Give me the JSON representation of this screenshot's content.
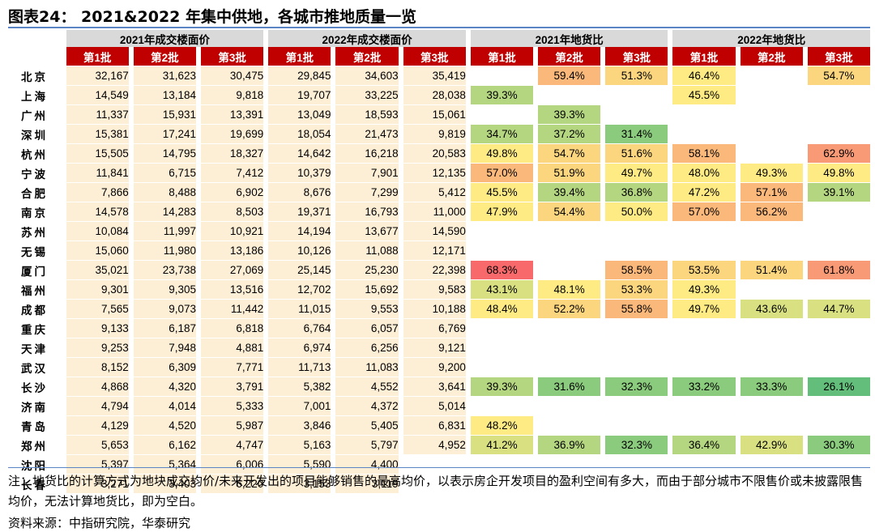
{
  "title": "图表24： 2021&2022 年集中供地，各城市推地质量一览",
  "group_headers": [
    "2021年成交楼面价",
    "2022年成交楼面价",
    "2021年地货比",
    "2022年地货比"
  ],
  "batch_headers": [
    "第1批",
    "第2批",
    "第3批",
    "第1批",
    "第2批",
    "第3批",
    "第1批",
    "第2批",
    "第3批",
    "第1批",
    "第2批",
    "第3批"
  ],
  "rows": [
    {
      "city": "北京",
      "price": [
        "32,167",
        "31,623",
        "30,475",
        "29,845",
        "34,603",
        "35,419"
      ],
      "ratio": [
        "",
        "59.4%",
        "51.3%",
        "46.4%",
        "",
        "54.7%"
      ]
    },
    {
      "city": "上海",
      "price": [
        "14,549",
        "13,184",
        "9,818",
        "19,707",
        "33,225",
        "28,038"
      ],
      "ratio": [
        "39.3%",
        "",
        "",
        "45.5%",
        "",
        ""
      ]
    },
    {
      "city": "广州",
      "price": [
        "11,337",
        "15,931",
        "13,391",
        "13,049",
        "18,593",
        "15,061"
      ],
      "ratio": [
        "",
        "39.3%",
        "",
        "",
        "",
        ""
      ]
    },
    {
      "city": "深圳",
      "price": [
        "15,381",
        "17,241",
        "19,699",
        "18,054",
        "21,473",
        "9,819"
      ],
      "ratio": [
        "34.7%",
        "37.2%",
        "31.4%",
        "",
        "",
        ""
      ]
    },
    {
      "city": "杭州",
      "price": [
        "15,505",
        "14,795",
        "18,327",
        "14,642",
        "16,218",
        "20,583"
      ],
      "ratio": [
        "49.8%",
        "54.7%",
        "51.6%",
        "58.1%",
        "",
        "62.9%"
      ]
    },
    {
      "city": "宁波",
      "price": [
        "11,841",
        "6,715",
        "7,412",
        "10,379",
        "7,901",
        "12,135"
      ],
      "ratio": [
        "57.0%",
        "51.9%",
        "49.7%",
        "48.0%",
        "49.3%",
        "49.8%"
      ]
    },
    {
      "city": "合肥",
      "price": [
        "7,866",
        "8,488",
        "6,902",
        "8,676",
        "7,299",
        "5,412"
      ],
      "ratio": [
        "45.5%",
        "39.4%",
        "36.8%",
        "47.2%",
        "57.1%",
        "39.1%"
      ]
    },
    {
      "city": "南京",
      "price": [
        "14,578",
        "14,283",
        "8,503",
        "19,371",
        "16,793",
        "11,000"
      ],
      "ratio": [
        "47.9%",
        "54.4%",
        "50.0%",
        "57.0%",
        "56.2%",
        ""
      ]
    },
    {
      "city": "苏州",
      "price": [
        "10,084",
        "11,997",
        "10,921",
        "14,194",
        "13,677",
        "14,590"
      ],
      "ratio": [
        "",
        "",
        "",
        "",
        "",
        ""
      ]
    },
    {
      "city": "无锡",
      "price": [
        "15,060",
        "11,980",
        "13,186",
        "10,126",
        "11,088",
        "12,171"
      ],
      "ratio": [
        "",
        "",
        "",
        "",
        "",
        ""
      ]
    },
    {
      "city": "厦门",
      "price": [
        "35,021",
        "23,738",
        "27,069",
        "25,145",
        "25,230",
        "22,398"
      ],
      "ratio": [
        "68.3%",
        "",
        "58.5%",
        "53.5%",
        "51.4%",
        "61.8%"
      ]
    },
    {
      "city": "福州",
      "price": [
        "9,301",
        "9,305",
        "13,516",
        "12,702",
        "15,692",
        "9,583"
      ],
      "ratio": [
        "43.1%",
        "48.1%",
        "53.3%",
        "49.3%",
        "",
        ""
      ]
    },
    {
      "city": "成都",
      "price": [
        "7,565",
        "9,073",
        "11,442",
        "11,015",
        "9,553",
        "10,188"
      ],
      "ratio": [
        "48.4%",
        "52.2%",
        "55.8%",
        "49.7%",
        "43.6%",
        "44.7%"
      ]
    },
    {
      "city": "重庆",
      "price": [
        "9,133",
        "6,187",
        "6,818",
        "6,764",
        "6,057",
        "6,769"
      ],
      "ratio": [
        "",
        "",
        "",
        "",
        "",
        ""
      ]
    },
    {
      "city": "天津",
      "price": [
        "9,253",
        "7,948",
        "4,881",
        "6,974",
        "6,256",
        "9,121"
      ],
      "ratio": [
        "",
        "",
        "",
        "",
        "",
        ""
      ]
    },
    {
      "city": "武汉",
      "price": [
        "8,152",
        "6,309",
        "7,771",
        "11,713",
        "11,083",
        "9,200"
      ],
      "ratio": [
        "",
        "",
        "",
        "",
        "",
        ""
      ]
    },
    {
      "city": "长沙",
      "price": [
        "4,868",
        "4,320",
        "3,791",
        "5,382",
        "4,552",
        "3,641"
      ],
      "ratio": [
        "39.3%",
        "31.6%",
        "32.3%",
        "33.2%",
        "33.3%",
        "26.1%"
      ]
    },
    {
      "city": "济南",
      "price": [
        "4,794",
        "4,014",
        "5,333",
        "7,001",
        "4,372",
        "5,014"
      ],
      "ratio": [
        "",
        "",
        "",
        "",
        "",
        ""
      ]
    },
    {
      "city": "青岛",
      "price": [
        "4,129",
        "4,520",
        "5,987",
        "3,846",
        "5,405",
        "6,831"
      ],
      "ratio": [
        "48.2%",
        "",
        "",
        "",
        "",
        ""
      ]
    },
    {
      "city": "郑州",
      "price": [
        "5,653",
        "6,162",
        "4,747",
        "5,163",
        "5,797",
        "4,952"
      ],
      "ratio": [
        "41.2%",
        "36.9%",
        "32.3%",
        "36.4%",
        "42.9%",
        "30.3%"
      ]
    },
    {
      "city": "沈阳",
      "price": [
        "5,397",
        "5,364",
        "6,006",
        "5,590",
        "4,400",
        ""
      ],
      "ratio": [
        "",
        "",
        "",
        "",
        "",
        ""
      ]
    },
    {
      "city": "长春",
      "price": [
        "3,271",
        "3,403",
        "6,220",
        "3,153",
        "3,119",
        ""
      ],
      "ratio": [
        "",
        "",
        "",
        "",
        "",
        ""
      ]
    }
  ],
  "color_scale": [
    "#63be7b",
    "#8bcb7d",
    "#b5d680",
    "#d8e082",
    "#ffeb84",
    "#fcd57f",
    "#fbb87b",
    "#f99a76",
    "#f8696b"
  ],
  "header_color": "#c00000",
  "price_cell_color": "#fdeed6",
  "note": "注：地货比的计算方式为地块成交均价/未来开发出的项目能够销售的最高均价，以表示房企开发项目的盈利空间有多大，而由于部分城市不限售价或未披露限售均价，无法计算地货比，即为空白。",
  "source": "资料来源：中指研究院，华泰研究"
}
